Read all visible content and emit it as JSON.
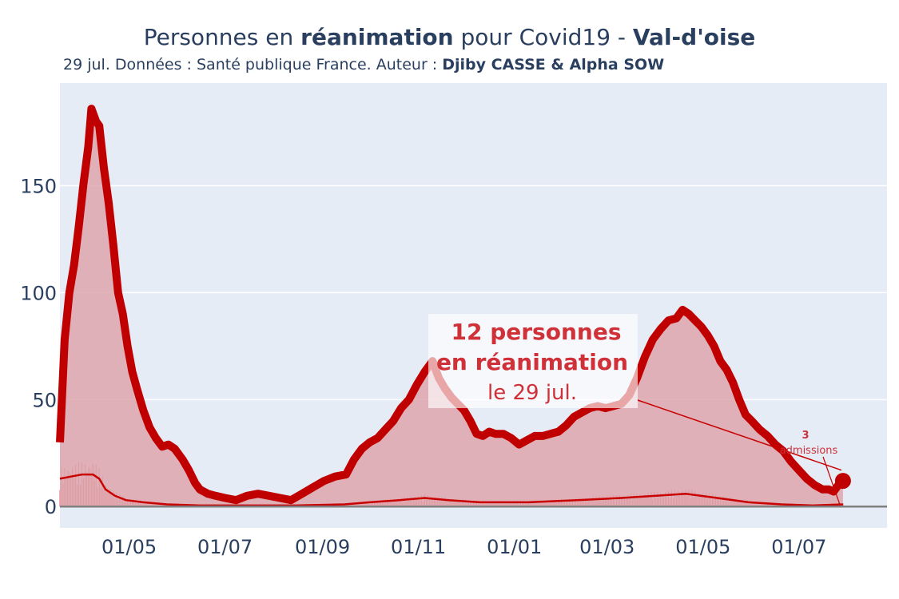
{
  "header": {
    "title_part1": "Personnes en ",
    "title_bold1": "réanimation",
    "title_part2": " pour Covid19 - ",
    "title_bold2": "Val-d'oise",
    "subtitle_part1": "29 jul. Données : Santé publique France. Auteur : ",
    "subtitle_bold": "Djiby CASSE & Alpha SOW"
  },
  "annotation": {
    "line1": "12 personnes",
    "line2": "en réanimation",
    "line3": "le 29 jul."
  },
  "admissions_label": {
    "value": "3",
    "text": "admissions"
  },
  "colors": {
    "main_line": "#c00000",
    "fill": "#dea6ad",
    "admissions_line": "#c80000",
    "annotation_text": "#d03038",
    "plot_bg": "#e5ecf6"
  },
  "chart_data": {
    "type": "line",
    "title": "Personnes en réanimation pour Covid19 - Val-d'oise",
    "x_range": [
      "2020-03-18",
      "2021-08-26"
    ],
    "ylim": [
      -10,
      198
    ],
    "y_ticks": [
      0,
      50,
      100,
      150
    ],
    "x_ticks": [
      {
        "date": "2020-05-01",
        "label": "01/05"
      },
      {
        "date": "2020-07-01",
        "label": "01/07"
      },
      {
        "date": "2020-09-01",
        "label": "01/09"
      },
      {
        "date": "2020-11-01",
        "label": "01/11"
      },
      {
        "date": "2021-01-01",
        "label": "01/01"
      },
      {
        "date": "2021-03-01",
        "label": "01/03"
      },
      {
        "date": "2021-05-01",
        "label": "01/05"
      },
      {
        "date": "2021-07-01",
        "label": "01/07"
      }
    ],
    "series": [
      {
        "name": "",
        "type": "area",
        "points": [
          [
            "2020-03-18",
            30
          ],
          [
            "2020-03-21",
            78
          ],
          [
            "2020-03-24",
            100
          ],
          [
            "2020-03-27",
            113
          ],
          [
            "2020-03-30",
            131
          ],
          [
            "2020-04-02",
            151
          ],
          [
            "2020-04-05",
            168
          ],
          [
            "2020-04-07",
            186
          ],
          [
            "2020-04-10",
            180
          ],
          [
            "2020-04-12",
            178
          ],
          [
            "2020-04-15",
            158
          ],
          [
            "2020-04-18",
            142
          ],
          [
            "2020-04-21",
            122
          ],
          [
            "2020-04-24",
            100
          ],
          [
            "2020-04-27",
            90
          ],
          [
            "2020-04-30",
            75
          ],
          [
            "2020-05-03",
            63
          ],
          [
            "2020-05-06",
            55
          ],
          [
            "2020-05-10",
            45
          ],
          [
            "2020-05-14",
            37
          ],
          [
            "2020-05-18",
            32
          ],
          [
            "2020-05-22",
            28
          ],
          [
            "2020-05-26",
            29
          ],
          [
            "2020-05-30",
            27
          ],
          [
            "2020-06-04",
            22
          ],
          [
            "2020-06-08",
            17
          ],
          [
            "2020-06-12",
            11
          ],
          [
            "2020-06-15",
            8
          ],
          [
            "2020-06-20",
            6
          ],
          [
            "2020-06-25",
            5
          ],
          [
            "2020-07-01",
            4
          ],
          [
            "2020-07-08",
            3
          ],
          [
            "2020-07-15",
            5
          ],
          [
            "2020-07-22",
            6
          ],
          [
            "2020-07-29",
            5
          ],
          [
            "2020-08-05",
            4
          ],
          [
            "2020-08-12",
            3
          ],
          [
            "2020-08-19",
            6
          ],
          [
            "2020-08-26",
            9
          ],
          [
            "2020-09-02",
            12
          ],
          [
            "2020-09-09",
            14
          ],
          [
            "2020-09-16",
            15
          ],
          [
            "2020-09-21",
            22
          ],
          [
            "2020-09-26",
            27
          ],
          [
            "2020-10-01",
            30
          ],
          [
            "2020-10-06",
            32
          ],
          [
            "2020-10-11",
            36
          ],
          [
            "2020-10-16",
            40
          ],
          [
            "2020-10-21",
            46
          ],
          [
            "2020-10-26",
            50
          ],
          [
            "2020-10-31",
            57
          ],
          [
            "2020-11-05",
            63
          ],
          [
            "2020-11-10",
            68
          ],
          [
            "2020-11-14",
            60
          ],
          [
            "2020-11-18",
            55
          ],
          [
            "2020-11-22",
            51
          ],
          [
            "2020-11-26",
            48
          ],
          [
            "2020-11-30",
            45
          ],
          [
            "2020-12-04",
            40
          ],
          [
            "2020-12-08",
            34
          ],
          [
            "2020-12-12",
            33
          ],
          [
            "2020-12-16",
            35
          ],
          [
            "2020-12-20",
            34
          ],
          [
            "2020-12-25",
            34
          ],
          [
            "2020-12-30",
            32
          ],
          [
            "2021-01-04",
            29
          ],
          [
            "2021-01-09",
            31
          ],
          [
            "2021-01-14",
            33
          ],
          [
            "2021-01-19",
            33
          ],
          [
            "2021-01-24",
            34
          ],
          [
            "2021-01-29",
            35
          ],
          [
            "2021-02-03",
            38
          ],
          [
            "2021-02-08",
            42
          ],
          [
            "2021-02-13",
            44
          ],
          [
            "2021-02-18",
            46
          ],
          [
            "2021-02-23",
            47
          ],
          [
            "2021-02-28",
            46
          ],
          [
            "2021-03-05",
            47
          ],
          [
            "2021-03-10",
            48
          ],
          [
            "2021-03-15",
            52
          ],
          [
            "2021-03-20",
            60
          ],
          [
            "2021-03-25",
            70
          ],
          [
            "2021-03-30",
            78
          ],
          [
            "2021-04-04",
            83
          ],
          [
            "2021-04-09",
            87
          ],
          [
            "2021-04-14",
            88
          ],
          [
            "2021-04-18",
            92
          ],
          [
            "2021-04-22",
            90
          ],
          [
            "2021-04-26",
            87
          ],
          [
            "2021-04-30",
            84
          ],
          [
            "2021-05-04",
            80
          ],
          [
            "2021-05-08",
            75
          ],
          [
            "2021-05-12",
            68
          ],
          [
            "2021-05-16",
            64
          ],
          [
            "2021-05-20",
            58
          ],
          [
            "2021-05-24",
            50
          ],
          [
            "2021-05-28",
            43
          ],
          [
            "2021-06-01",
            40
          ],
          [
            "2021-06-06",
            36
          ],
          [
            "2021-06-11",
            33
          ],
          [
            "2021-06-16",
            29
          ],
          [
            "2021-06-21",
            26
          ],
          [
            "2021-06-26",
            21
          ],
          [
            "2021-07-01",
            17
          ],
          [
            "2021-07-06",
            13
          ],
          [
            "2021-07-11",
            10
          ],
          [
            "2021-07-16",
            8
          ],
          [
            "2021-07-20",
            8
          ],
          [
            "2021-07-23",
            7
          ],
          [
            "2021-07-26",
            10
          ],
          [
            "2021-07-29",
            12
          ]
        ]
      },
      {
        "name": "",
        "type": "line",
        "points": [
          [
            "2020-03-18",
            13
          ],
          [
            "2020-03-25",
            14
          ],
          [
            "2020-04-01",
            15
          ],
          [
            "2020-04-08",
            15
          ],
          [
            "2020-04-12",
            13
          ],
          [
            "2020-04-16",
            8
          ],
          [
            "2020-04-22",
            5
          ],
          [
            "2020-04-29",
            3
          ],
          [
            "2020-05-10",
            2
          ],
          [
            "2020-05-25",
            1
          ],
          [
            "2020-06-15",
            0.5
          ],
          [
            "2020-07-15",
            0.5
          ],
          [
            "2020-08-15",
            0.5
          ],
          [
            "2020-09-15",
            1
          ],
          [
            "2020-10-01",
            2
          ],
          [
            "2020-10-20",
            3
          ],
          [
            "2020-11-05",
            4
          ],
          [
            "2020-11-20",
            3
          ],
          [
            "2020-12-10",
            2
          ],
          [
            "2021-01-10",
            2
          ],
          [
            "2021-02-10",
            3
          ],
          [
            "2021-03-10",
            4
          ],
          [
            "2021-04-01",
            5
          ],
          [
            "2021-04-20",
            6
          ],
          [
            "2021-05-10",
            4
          ],
          [
            "2021-05-30",
            2
          ],
          [
            "2021-06-20",
            1
          ],
          [
            "2021-07-10",
            0.5
          ],
          [
            "2021-07-29",
            1
          ]
        ]
      }
    ],
    "highlight_point": {
      "date": "2021-07-29",
      "value": 12
    }
  }
}
